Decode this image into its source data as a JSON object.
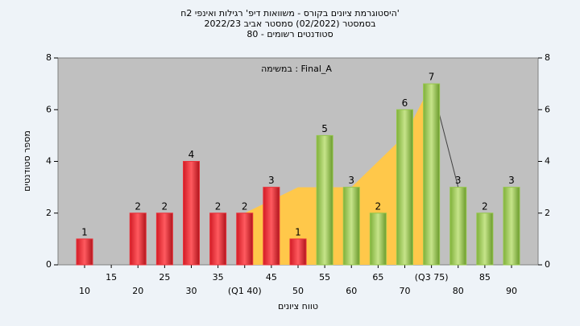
{
  "chart_data": {
    "type": "bar",
    "title": "היסטוגרמת ציונים בקורס - משוואות דיפ' רגילות ואינפי 2ח'",
    "subtitle": "בסמסטר (02/2022) סמסטר אביב 2022/23",
    "subtitle2": "סטודנטים רשומים - 80",
    "annotation": "במשימה : Final_A",
    "x_label": "טווח ציונים",
    "y_label": "מספר סטודנטים",
    "categories": [
      "10",
      "15",
      "20",
      "25",
      "30",
      "35",
      "(Q1 40)",
      "45",
      "50",
      "55",
      "60",
      "65",
      "70",
      "(Q3 75)",
      "80",
      "85",
      "90"
    ],
    "values": [
      1,
      0,
      2,
      2,
      4,
      2,
      2,
      3,
      1,
      5,
      3,
      2,
      6,
      7,
      3,
      2,
      3
    ],
    "value_labels": [
      "1",
      null,
      "2",
      "2",
      "4",
      "2",
      "2",
      "3",
      "1",
      "5",
      "3",
      "2",
      "6",
      "7",
      "3",
      "2",
      "3"
    ],
    "colors": [
      "#e8323a",
      "#e8323a",
      "#e8323a",
      "#e8323a",
      "#e8323a",
      "#e8323a",
      "#e8323a",
      "#e8323a",
      "#e8323a",
      "#94c64a",
      "#94c64a",
      "#94c64a",
      "#94c64a",
      "#94c64a",
      "#94c64a",
      "#94c64a",
      "#94c64a"
    ],
    "band": {
      "color": "#ffc84a",
      "values": [
        null,
        null,
        null,
        null,
        null,
        null,
        2,
        2.5,
        3,
        3,
        3,
        4,
        5,
        7,
        3,
        null,
        null
      ]
    },
    "ylim": [
      0,
      8
    ],
    "yticks": [
      0,
      2,
      4,
      6,
      8
    ],
    "y2lim": [
      0,
      8
    ],
    "y2ticks": [
      0,
      2,
      4,
      6,
      8
    ]
  }
}
